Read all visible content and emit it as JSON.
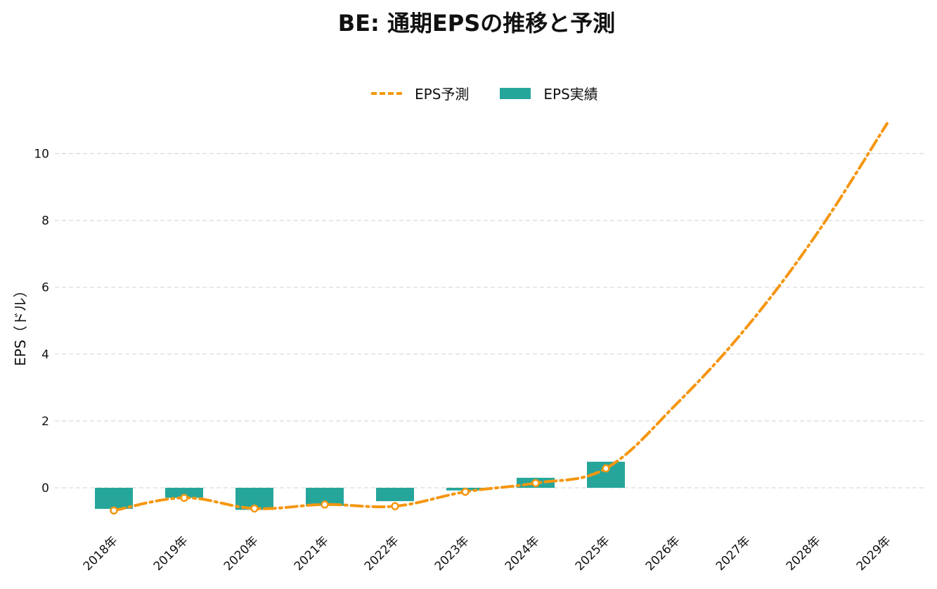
{
  "title": "BE: 通期EPSの推移と予測",
  "chart_data": {
    "type": "bar",
    "title": "BE: 通期EPSの推移と予測",
    "xlabel": "",
    "ylabel": "EPS（ドル）",
    "ylim": [
      -1.3,
      11.5
    ],
    "yticks": [
      0,
      2,
      4,
      6,
      8,
      10
    ],
    "grid": true,
    "legend_placement": "top-center",
    "categories": [
      "2018年",
      "2019年",
      "2020年",
      "2021年",
      "2022年",
      "2023年",
      "2024年",
      "2025年",
      "2026年",
      "2027年",
      "2028年",
      "2029年"
    ],
    "series": [
      {
        "name": "EPS予測",
        "type": "line",
        "color": "#f5960f",
        "values": [
          -0.68,
          -0.3,
          -0.62,
          -0.5,
          -0.55,
          -0.12,
          0.14,
          0.58,
          2.5,
          4.8,
          7.6,
          10.9
        ],
        "markers": [
          true,
          true,
          true,
          true,
          true,
          true,
          true,
          true,
          false,
          false,
          false,
          false
        ]
      },
      {
        "name": "EPS実績",
        "type": "bar",
        "color": "#26a69a",
        "values": [
          -0.63,
          -0.3,
          -0.66,
          -0.54,
          -0.4,
          -0.08,
          0.3,
          0.78,
          null,
          null,
          null,
          null
        ]
      }
    ]
  }
}
